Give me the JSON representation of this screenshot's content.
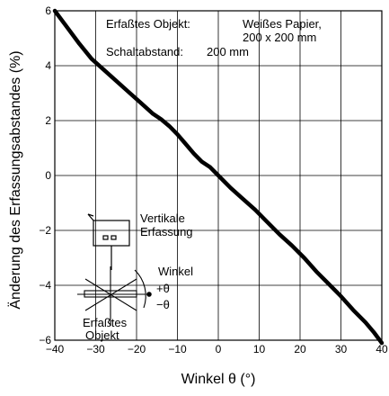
{
  "chart_data": {
    "type": "line",
    "xlabel": "Winkel θ (°)",
    "ylabel": "Änderung des Erfassungsabstandes (%)",
    "xlim": [
      -40,
      40
    ],
    "ylim": [
      -6,
      6
    ],
    "x_ticks": [
      "−40",
      "−30",
      "−20",
      "−10",
      "0",
      "10",
      "20",
      "30",
      "40"
    ],
    "y_ticks": [
      "6",
      "4",
      "2",
      "0",
      "−2",
      "−4",
      "−6"
    ],
    "grid": true,
    "series": [
      {
        "x": [
          -40,
          -37,
          -34,
          -31,
          -28,
          -25,
          -22,
          -19,
          -16,
          -14,
          -12,
          -10,
          -8,
          -6,
          -4,
          -2,
          0,
          3,
          6,
          9,
          12,
          15,
          18,
          21,
          24,
          27,
          30,
          33,
          36,
          38,
          40
        ],
        "y": [
          6,
          5.4,
          4.8,
          4.25,
          3.85,
          3.45,
          3.05,
          2.65,
          2.25,
          2.05,
          1.8,
          1.5,
          1.15,
          0.8,
          0.5,
          0.3,
          0,
          -0.45,
          -0.85,
          -1.25,
          -1.7,
          -2.15,
          -2.55,
          -3,
          -3.5,
          -3.95,
          -4.4,
          -4.9,
          -5.35,
          -5.7,
          -6.1
        ]
      }
    ],
    "annotations": {
      "object_label": "Erfaßtes Objekt:",
      "object_value_line1": "Weißes Papier,",
      "object_value_line2": "200 x 200 mm",
      "distance_label": "Schaltabstand:",
      "distance_value": "200 mm",
      "vertical_line1": "Vertikale",
      "vertical_line2": "Erfassung",
      "angle_label": "Winkel",
      "plus_theta": "+θ",
      "minus_theta": "−θ",
      "detected_line1": "Erfaßtes",
      "detected_line2": "Objekt"
    }
  }
}
